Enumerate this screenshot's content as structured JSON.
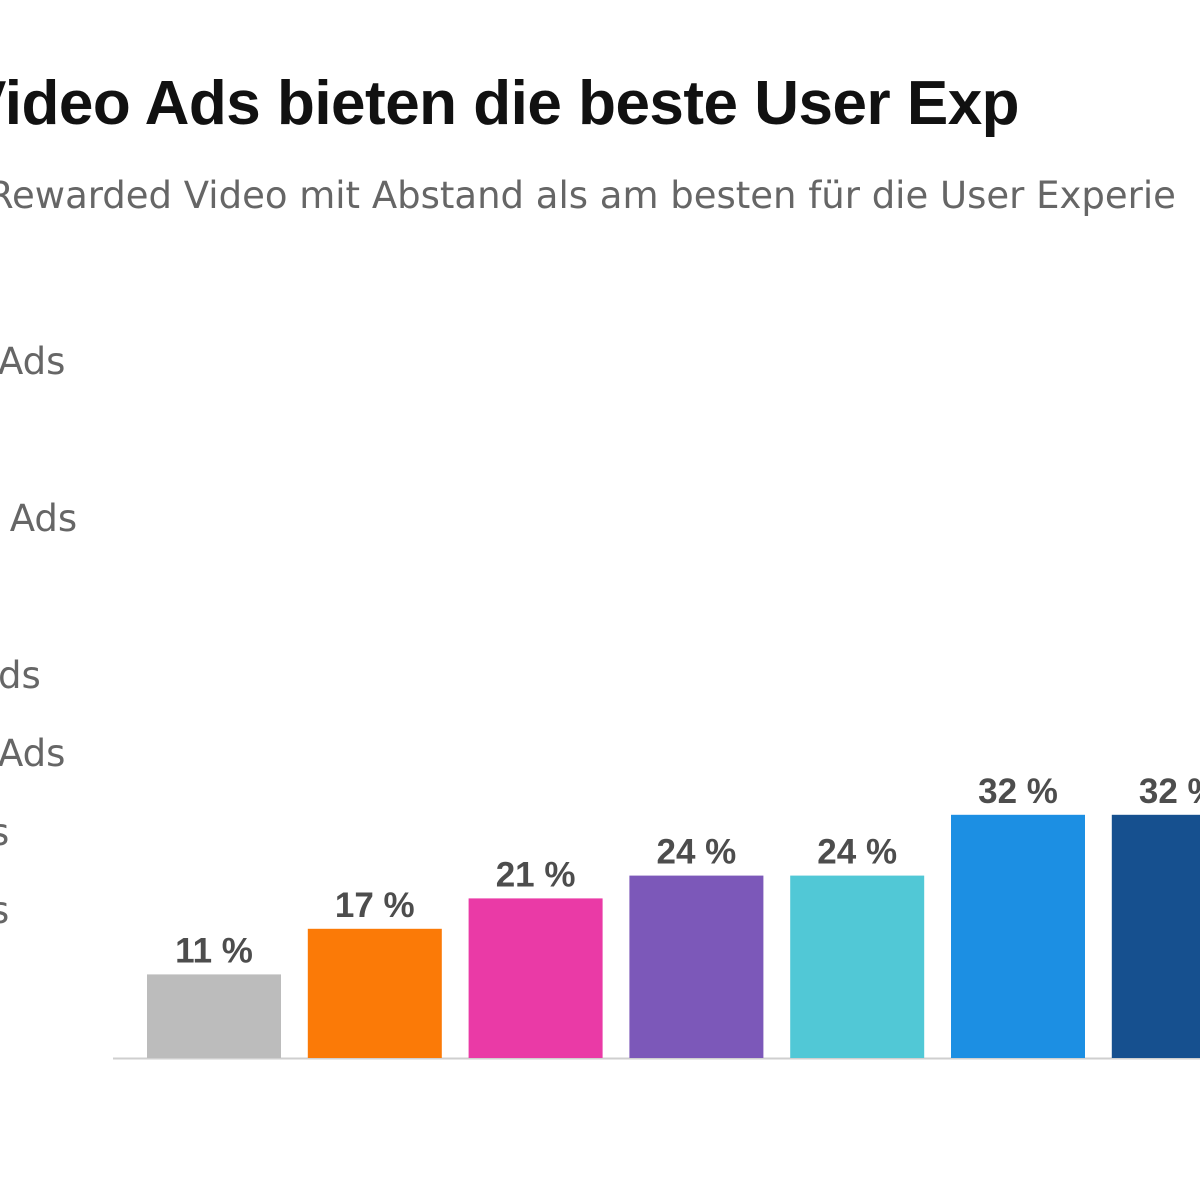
{
  "chart_data": {
    "type": "bar",
    "title": "Video Ads bieten die beste User Exp",
    "subtitle": "Rewarded Video mit Abstand als am besten für die User Experie",
    "legend_placement": "left",
    "legend_entries": [
      "Ads",
      " Ads",
      "ds",
      "Ads",
      "s",
      "s"
    ],
    "series": [
      {
        "values": [
          11,
          17,
          21,
          24,
          24,
          32,
          32
        ],
        "value_labels": [
          "11 %",
          "17 %",
          "21 %",
          "24 %",
          "24 %",
          "32 %",
          "32 %"
        ],
        "colors": [
          "#bcbcbc",
          "#fb7a07",
          "#ea3aa6",
          "#7c58b9",
          "#51c8d6",
          "#1c8fe3",
          "#16508f"
        ]
      }
    ],
    "ylim": [
      0,
      40
    ],
    "grid": false,
    "xlabel": "",
    "ylabel": ""
  }
}
